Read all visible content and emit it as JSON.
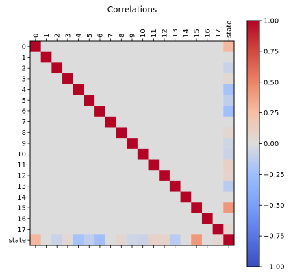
{
  "chart_data": {
    "type": "heatmap",
    "title": "Correlations",
    "labels": [
      "0",
      "1",
      "2",
      "3",
      "4",
      "5",
      "6",
      "7",
      "8",
      "9",
      "10",
      "11",
      "12",
      "13",
      "14",
      "15",
      "16",
      "17",
      "state"
    ],
    "state_correlations": [
      0.28,
      0.0,
      -0.08,
      0.04,
      -0.22,
      -0.12,
      -0.24,
      0.0,
      0.06,
      -0.06,
      -0.08,
      0.1,
      0.08,
      -0.14,
      0.0,
      0.42,
      0.0,
      0.06,
      1.0
    ],
    "colormap": "coolwarm",
    "vmin": -1.0,
    "vmax": 1.0,
    "colorbar_ticks": [
      "1.00",
      "0.75",
      "0.50",
      "0.25",
      "0.00",
      "−0.25",
      "−0.50",
      "−0.75",
      "−1.00"
    ],
    "colorbar_tick_values": [
      1.0,
      0.75,
      0.5,
      0.25,
      0.0,
      -0.25,
      -0.5,
      -0.75,
      -1.0
    ],
    "xlabel": "",
    "ylabel": "",
    "grid": false,
    "x_tick_position": "top"
  }
}
